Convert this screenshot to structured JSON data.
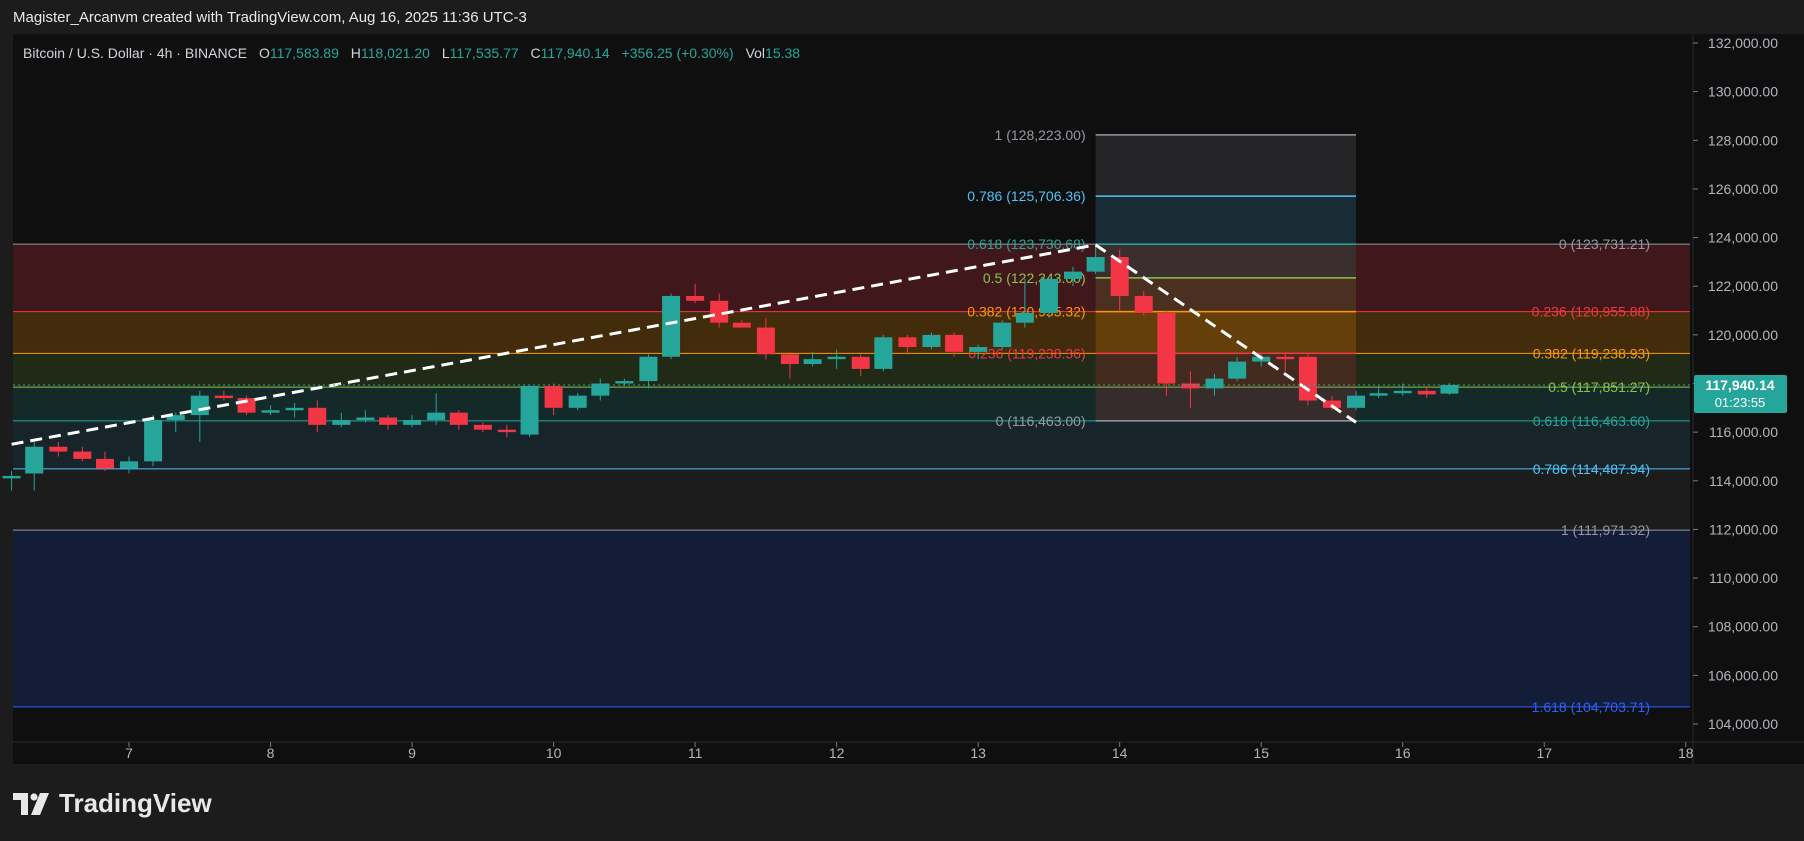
{
  "header": {
    "attribution": "Magister_Arcanvm created with TradingView.com, Aug 16, 2025 11:36 UTC-3"
  },
  "legend": {
    "symbol": "Bitcoin / U.S. Dollar · 4h · BINANCE",
    "open_label": "O",
    "open": "117,583.89",
    "high_label": "H",
    "high": "118,021.20",
    "low_label": "L",
    "low": "117,535.77",
    "close_label": "C",
    "close": "117,940.14",
    "change": "+356.25 (+0.30%)",
    "vol_label": "Vol",
    "vol": "15.38"
  },
  "brand": {
    "name": "TradingView",
    "icon": "tradingview-logo-icon"
  },
  "colors": {
    "up": "#26a69a",
    "down": "#f23645",
    "fib_red": "#f23645",
    "fib_orange": "#ff9800",
    "fib_green": "#8bc34a",
    "fib_teal": "#26a69a",
    "fib_cyan": "#4fc3f7",
    "fib_blue": "#2962ff"
  },
  "chart_data": {
    "type": "candlestick",
    "timeframe": "4h",
    "x_axis": {
      "ticks": [
        "7",
        "8",
        "9",
        "10",
        "11",
        "12",
        "13",
        "14",
        "15",
        "16",
        "17",
        "18"
      ],
      "tick_days": [
        7,
        8,
        9,
        10,
        11,
        12,
        13,
        14,
        15,
        16,
        17,
        18
      ],
      "xlim": [
        6.18,
        18.03
      ]
    },
    "y_axis": {
      "ylim": [
        103500,
        132500
      ],
      "ticks": [
        104000,
        106000,
        108000,
        110000,
        112000,
        114000,
        116000,
        118000,
        120000,
        122000,
        124000,
        126000,
        128000,
        130000,
        132000
      ],
      "tick_labels": [
        "104,000.00",
        "106,000.00",
        "108,000.00",
        "110,000.00",
        "112,000.00",
        "114,000.00",
        "116,000.00",
        "118,000.00",
        "120,000.00",
        "122,000.00",
        "124,000.00",
        "126,000.00",
        "128,000.00",
        "130,000.00",
        "132,000.00"
      ]
    },
    "last_price": {
      "value": 117940.14,
      "label": "117,940.14",
      "countdown": "01:23:55"
    },
    "candles": [
      {
        "t": 6.17,
        "o": 114100,
        "h": 114400,
        "l": 113600,
        "c": 114200
      },
      {
        "t": 6.33,
        "o": 114300,
        "h": 115600,
        "l": 113600,
        "c": 115400
      },
      {
        "t": 6.5,
        "o": 115400,
        "h": 115600,
        "l": 115000,
        "c": 115200
      },
      {
        "t": 6.67,
        "o": 115200,
        "h": 115400,
        "l": 114800,
        "c": 114900
      },
      {
        "t": 6.83,
        "o": 114900,
        "h": 115200,
        "l": 114400,
        "c": 114500
      },
      {
        "t": 7.0,
        "o": 114500,
        "h": 115000,
        "l": 114300,
        "c": 114800
      },
      {
        "t": 7.17,
        "o": 114800,
        "h": 116700,
        "l": 114600,
        "c": 116500
      },
      {
        "t": 7.33,
        "o": 116500,
        "h": 116800,
        "l": 116000,
        "c": 116700
      },
      {
        "t": 7.5,
        "o": 116700,
        "h": 117700,
        "l": 115600,
        "c": 117500
      },
      {
        "t": 7.67,
        "o": 117500,
        "h": 117700,
        "l": 117300,
        "c": 117400
      },
      {
        "t": 7.83,
        "o": 117400,
        "h": 117500,
        "l": 116700,
        "c": 116800
      },
      {
        "t": 8.0,
        "o": 116800,
        "h": 117100,
        "l": 116700,
        "c": 116900
      },
      {
        "t": 8.17,
        "o": 116900,
        "h": 117200,
        "l": 116600,
        "c": 117000
      },
      {
        "t": 8.33,
        "o": 117000,
        "h": 117300,
        "l": 116000,
        "c": 116300
      },
      {
        "t": 8.5,
        "o": 116300,
        "h": 116800,
        "l": 116200,
        "c": 116500
      },
      {
        "t": 8.67,
        "o": 116500,
        "h": 116900,
        "l": 116400,
        "c": 116600
      },
      {
        "t": 8.83,
        "o": 116600,
        "h": 116700,
        "l": 116100,
        "c": 116300
      },
      {
        "t": 9.0,
        "o": 116300,
        "h": 116700,
        "l": 116200,
        "c": 116500
      },
      {
        "t": 9.17,
        "o": 116500,
        "h": 117600,
        "l": 116300,
        "c": 116800
      },
      {
        "t": 9.33,
        "o": 116800,
        "h": 116900,
        "l": 116100,
        "c": 116300
      },
      {
        "t": 9.5,
        "o": 116300,
        "h": 116400,
        "l": 116000,
        "c": 116100
      },
      {
        "t": 9.67,
        "o": 116100,
        "h": 116300,
        "l": 115800,
        "c": 116000
      },
      {
        "t": 9.83,
        "o": 115900,
        "h": 117900,
        "l": 115800,
        "c": 117900
      },
      {
        "t": 10.0,
        "o": 117900,
        "h": 118000,
        "l": 116700,
        "c": 117000
      },
      {
        "t": 10.17,
        "o": 117000,
        "h": 117600,
        "l": 116900,
        "c": 117500
      },
      {
        "t": 10.33,
        "o": 117500,
        "h": 118200,
        "l": 117300,
        "c": 118000
      },
      {
        "t": 10.5,
        "o": 118000,
        "h": 118200,
        "l": 117900,
        "c": 118100
      },
      {
        "t": 10.67,
        "o": 118100,
        "h": 119200,
        "l": 117800,
        "c": 119100
      },
      {
        "t": 10.83,
        "o": 119100,
        "h": 121700,
        "l": 119000,
        "c": 121600
      },
      {
        "t": 11.0,
        "o": 121600,
        "h": 122100,
        "l": 121300,
        "c": 121400
      },
      {
        "t": 11.17,
        "o": 121400,
        "h": 121700,
        "l": 120300,
        "c": 120500
      },
      {
        "t": 11.33,
        "o": 120500,
        "h": 120600,
        "l": 120300,
        "c": 120300
      },
      {
        "t": 11.5,
        "o": 120300,
        "h": 120700,
        "l": 119000,
        "c": 119200
      },
      {
        "t": 11.67,
        "o": 119200,
        "h": 119300,
        "l": 118200,
        "c": 118800
      },
      {
        "t": 11.83,
        "o": 118800,
        "h": 119300,
        "l": 118700,
        "c": 119000
      },
      {
        "t": 12.0,
        "o": 119000,
        "h": 119400,
        "l": 118600,
        "c": 119100
      },
      {
        "t": 12.17,
        "o": 119100,
        "h": 119200,
        "l": 118300,
        "c": 118600
      },
      {
        "t": 12.33,
        "o": 118600,
        "h": 120000,
        "l": 118500,
        "c": 119900
      },
      {
        "t": 12.5,
        "o": 119900,
        "h": 120000,
        "l": 119200,
        "c": 119500
      },
      {
        "t": 12.67,
        "o": 119500,
        "h": 120100,
        "l": 119400,
        "c": 120000
      },
      {
        "t": 12.83,
        "o": 120000,
        "h": 120100,
        "l": 119100,
        "c": 119300
      },
      {
        "t": 13.0,
        "o": 119300,
        "h": 119600,
        "l": 119000,
        "c": 119500
      },
      {
        "t": 13.17,
        "o": 119500,
        "h": 120600,
        "l": 119400,
        "c": 120500
      },
      {
        "t": 13.33,
        "o": 120500,
        "h": 122300,
        "l": 120300,
        "c": 120900
      },
      {
        "t": 13.5,
        "o": 120900,
        "h": 122400,
        "l": 120700,
        "c": 122300
      },
      {
        "t": 13.67,
        "o": 122300,
        "h": 122800,
        "l": 122000,
        "c": 122600
      },
      {
        "t": 13.83,
        "o": 122600,
        "h": 123700,
        "l": 122500,
        "c": 123200
      },
      {
        "t": 14.0,
        "o": 123200,
        "h": 123500,
        "l": 121000,
        "c": 121600
      },
      {
        "t": 14.17,
        "o": 121600,
        "h": 121800,
        "l": 120800,
        "c": 120900
      },
      {
        "t": 14.33,
        "o": 120900,
        "h": 121000,
        "l": 117500,
        "c": 118000
      },
      {
        "t": 14.5,
        "o": 118000,
        "h": 118500,
        "l": 117000,
        "c": 117800
      },
      {
        "t": 14.67,
        "o": 117800,
        "h": 118400,
        "l": 117500,
        "c": 118200
      },
      {
        "t": 14.83,
        "o": 118200,
        "h": 119100,
        "l": 118100,
        "c": 118900
      },
      {
        "t": 15.0,
        "o": 118900,
        "h": 119200,
        "l": 118700,
        "c": 119100
      },
      {
        "t": 15.17,
        "o": 119100,
        "h": 119300,
        "l": 118500,
        "c": 119000
      },
      {
        "t": 15.33,
        "o": 119100,
        "h": 119200,
        "l": 117100,
        "c": 117300
      },
      {
        "t": 15.5,
        "o": 117300,
        "h": 117500,
        "l": 116900,
        "c": 117000
      },
      {
        "t": 15.67,
        "o": 117000,
        "h": 117700,
        "l": 116900,
        "c": 117500
      },
      {
        "t": 15.83,
        "o": 117500,
        "h": 117900,
        "l": 117400,
        "c": 117600
      },
      {
        "t": 16.0,
        "o": 117600,
        "h": 118000,
        "l": 117500,
        "c": 117700
      },
      {
        "t": 16.17,
        "o": 117700,
        "h": 117900,
        "l": 117400,
        "c": 117550
      },
      {
        "t": 16.33,
        "o": 117584,
        "h": 118021,
        "l": 117536,
        "c": 117940
      }
    ],
    "trend_line_up": {
      "from": {
        "t": 6.17,
        "price": 115500
      },
      "to": {
        "t": 13.83,
        "price": 123700
      }
    },
    "trend_line_down": {
      "from": {
        "t": 13.83,
        "price": 123700
      },
      "to": {
        "t": 15.67,
        "price": 116400
      }
    },
    "fib_extension": {
      "x_range": [
        6.18,
        18.03
      ],
      "levels": [
        {
          "ratio": "0",
          "price": 123731.21,
          "label": "0 (123,731.21)",
          "color": "#9598a1"
        },
        {
          "ratio": "0.236",
          "price": 120955.88,
          "label": "0.236 (120,955.88)",
          "color": "#f23645"
        },
        {
          "ratio": "0.382",
          "price": 119238.93,
          "label": "0.382 (119,238.93)",
          "color": "#ff9800"
        },
        {
          "ratio": "0.5",
          "price": 117851.27,
          "label": "0.5 (117,851.27)",
          "color": "#8bc34a"
        },
        {
          "ratio": "0.618",
          "price": 116463.6,
          "label": "0.618 (116,463.60)",
          "color": "#26a69a"
        },
        {
          "ratio": "0.786",
          "price": 114487.94,
          "label": "0.786 (114,487.94)",
          "color": "#4fc3f7"
        },
        {
          "ratio": "1",
          "price": 111971.32,
          "label": "1 (111,971.32)",
          "color": "#9598a1"
        },
        {
          "ratio": "1.618",
          "price": 104703.71,
          "label": "1.618 (104,703.71)",
          "color": "#2962ff"
        }
      ]
    },
    "fib_retracement": {
      "x_range": [
        13.83,
        15.67
      ],
      "levels": [
        {
          "ratio": "1",
          "price": 128223.0,
          "label": "1 (128,223.00)",
          "color": "#9598a1"
        },
        {
          "ratio": "0.786",
          "price": 125706.36,
          "label": "0.786 (125,706.36)",
          "color": "#4fc3f7"
        },
        {
          "ratio": "0.618",
          "price": 123730.68,
          "label": "0.618 (123,730.68)",
          "color": "#26a69a"
        },
        {
          "ratio": "0.5",
          "price": 122343.0,
          "label": "0.5 (122,343.00)",
          "color": "#8bc34a"
        },
        {
          "ratio": "0.382",
          "price": 120955.32,
          "label": "0.382 (120,955.32)",
          "color": "#ff9800"
        },
        {
          "ratio": "0.236",
          "price": 119238.36,
          "label": "0.236 (119,238.36)",
          "color": "#f23645"
        },
        {
          "ratio": "0",
          "price": 116463.0,
          "label": "0 (116,463.00)",
          "color": "#9598a1"
        }
      ]
    }
  }
}
